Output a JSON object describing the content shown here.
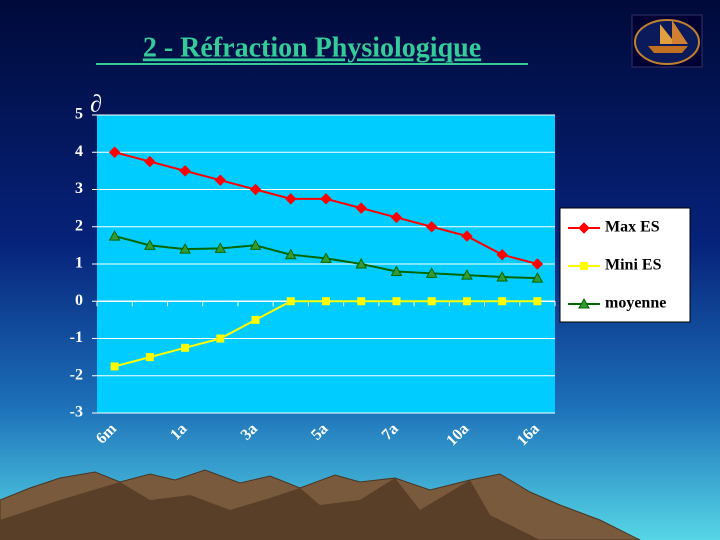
{
  "chart_data": {
    "type": "line",
    "title": "2 - Réfraction Physiologique",
    "ylabel": "∂",
    "categories": [
      "6m",
      null,
      "1a",
      null,
      "3a",
      null,
      "5a",
      null,
      "7a",
      null,
      "10a",
      null,
      "16a"
    ],
    "series": [
      {
        "name": "Max ES",
        "color": "#ff0000",
        "marker": "diamond",
        "values": [
          4,
          3.75,
          3.5,
          3.25,
          3,
          2.75,
          2.75,
          2.5,
          2.25,
          2,
          1.75,
          1.25,
          1
        ]
      },
      {
        "name": "Mini ES",
        "color": "#ffff00",
        "marker": "square",
        "values": [
          -1.75,
          -1.5,
          -1.25,
          -1,
          -0.5,
          0,
          0,
          0,
          0,
          0,
          0,
          0,
          0
        ]
      },
      {
        "name": "moyenne",
        "color": "#006600",
        "marker": "triangle",
        "values": [
          1.75,
          1.5,
          1.4,
          1.42,
          1.5,
          1.25,
          1.15,
          1,
          0.8,
          0.75,
          0.7,
          0.65,
          0.62
        ]
      }
    ],
    "ylim": [
      -3,
      5
    ],
    "yticks": [
      -3,
      -2,
      -1,
      0,
      1,
      2,
      3,
      4,
      5
    ],
    "grid": true,
    "legend": "right"
  }
}
